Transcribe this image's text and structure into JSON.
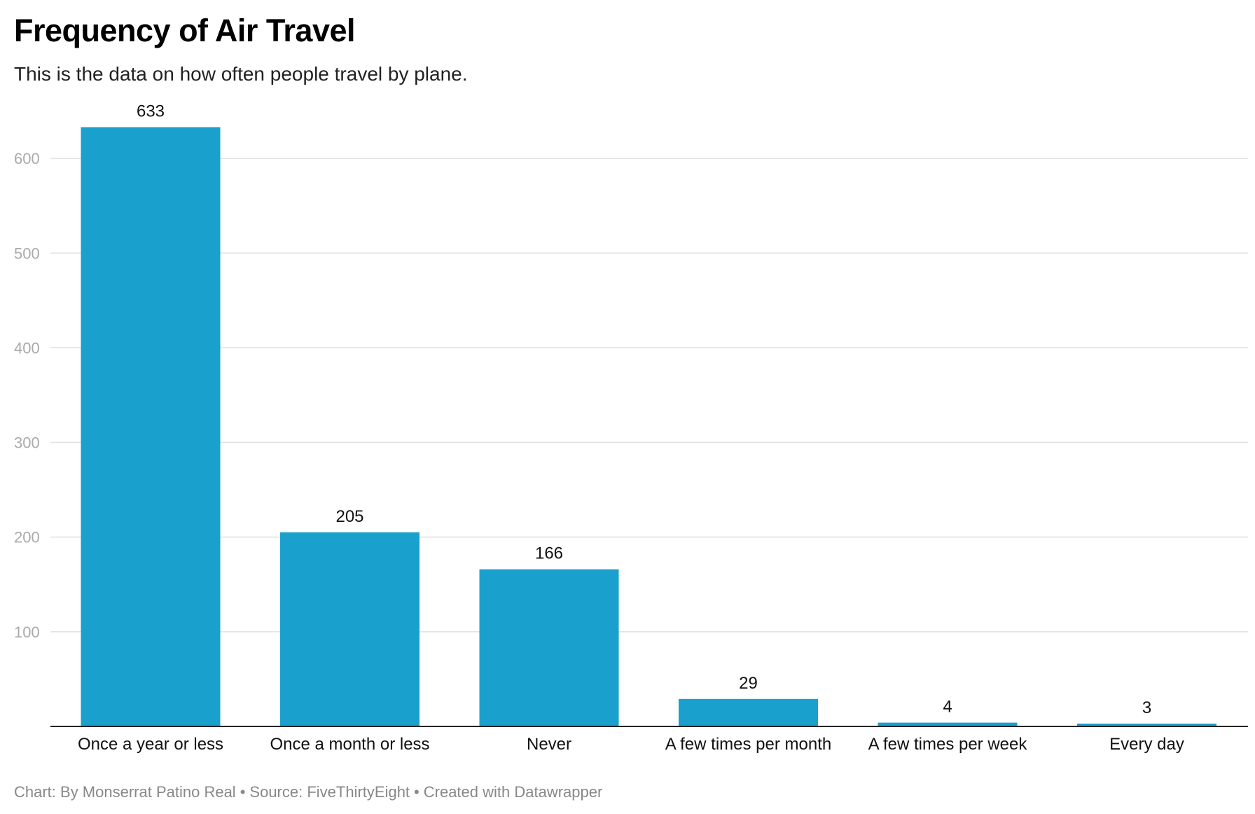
{
  "title": "Frequency of Air Travel",
  "subtitle": "This is the data on how often people travel by plane.",
  "footer": {
    "chart_credit": "Chart: By Monserrat Patino Real",
    "source": "Source: FiveThirtyEight",
    "created_with": "Created with Datawrapper",
    "separator": "•"
  },
  "colors": {
    "bar": "#1aa0cc",
    "gridline": "#e0e0e0",
    "baseline": "#222222",
    "tick_label": "#aaaaaa",
    "value_label": "#111111",
    "category_label": "#111111"
  },
  "chart_data": {
    "type": "bar",
    "title": "Frequency of Air Travel",
    "subtitle": "This is the data on how often people travel by plane.",
    "categories": [
      "Once a year or less",
      "Once a month or less",
      "Never",
      "A few times per month",
      "A few times per week",
      "Every day"
    ],
    "values": [
      633,
      205,
      166,
      29,
      4,
      3
    ],
    "data_labels": [
      "633",
      "205",
      "166",
      "29",
      "4",
      "3"
    ],
    "xlabel": "",
    "ylabel": "",
    "ylim": [
      0,
      633
    ],
    "yticks": [
      100,
      200,
      300,
      400,
      500,
      600
    ],
    "ytick_labels": [
      "100",
      "200",
      "300",
      "400",
      "500",
      "600"
    ],
    "grid": true,
    "legend": false
  }
}
